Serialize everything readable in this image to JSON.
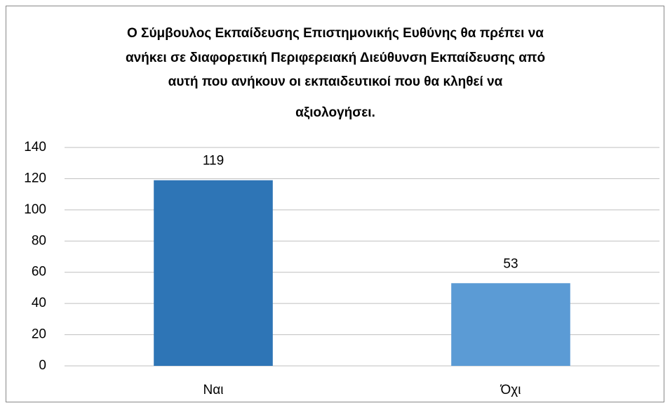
{
  "chart_data": {
    "type": "bar",
    "title": [
      "Ο Σύμβουλος Εκπαίδευσης Επιστημονικής Ευθύνης θα πρέπει να",
      "ανήκει σε διαφορετική Περιφερειακή Διεύθυνση Εκπαίδευσης από",
      "αυτή που ανήκουν οι εκπαιδευτικοί που θα κληθεί να",
      "αξιολογήσει."
    ],
    "categories": [
      "Ναι",
      "Όχι"
    ],
    "values": [
      119,
      53
    ],
    "colors": [
      "#2e75b6",
      "#5b9bd5"
    ],
    "ylim": [
      0,
      140
    ],
    "yticks": [
      0,
      20,
      40,
      60,
      80,
      100,
      120,
      140
    ],
    "grid": true
  }
}
